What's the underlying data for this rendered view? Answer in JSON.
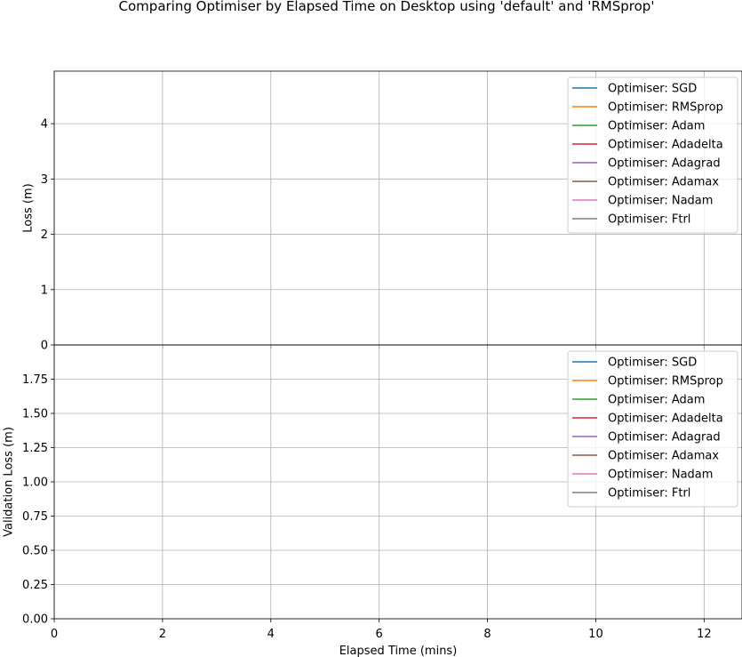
{
  "chart_data": [
    {
      "type": "line",
      "title": "Comparing Optimiser by Elapsed Time on Desktop using 'default' and 'RMSprop'",
      "ylabel": "Loss (m)",
      "xlabel": "",
      "xlim": [
        0,
        12.7
      ],
      "ylim": [
        0,
        4.95
      ],
      "xticks": [
        0,
        2,
        4,
        6,
        8,
        10,
        12
      ],
      "yticks": [
        0,
        1,
        2,
        3,
        4
      ],
      "grid": true,
      "legend_position": "top-right",
      "series": [
        {
          "name": "Optimiser: SGD",
          "color": "#1f77b4",
          "x": [],
          "y": []
        },
        {
          "name": "Optimiser: RMSprop",
          "color": "#ff7f0e",
          "x": [],
          "y": []
        },
        {
          "name": "Optimiser: Adam",
          "color": "#2ca02c",
          "x": [],
          "y": []
        },
        {
          "name": "Optimiser: Adadelta",
          "color": "#d62728",
          "x": [],
          "y": []
        },
        {
          "name": "Optimiser: Adagrad",
          "color": "#9467bd",
          "x": [],
          "y": []
        },
        {
          "name": "Optimiser: Adamax",
          "color": "#8c564b",
          "x": [],
          "y": []
        },
        {
          "name": "Optimiser: Nadam",
          "color": "#e377c2",
          "x": [],
          "y": []
        },
        {
          "name": "Optimiser: Ftrl",
          "color": "#7f7f7f",
          "x": [],
          "y": []
        }
      ]
    },
    {
      "type": "line",
      "title": "",
      "ylabel": "Validation Loss (m)",
      "xlabel": "Elapsed Time (mins)",
      "xlim": [
        0,
        12.7
      ],
      "ylim": [
        0,
        2.0
      ],
      "xticks": [
        0,
        2,
        4,
        6,
        8,
        10,
        12
      ],
      "yticks": [
        0.0,
        0.25,
        0.5,
        0.75,
        1.0,
        1.25,
        1.5,
        1.75
      ],
      "grid": true,
      "legend_position": "top-right",
      "series": [
        {
          "name": "Optimiser: SGD",
          "color": "#1f77b4",
          "x": [],
          "y": []
        },
        {
          "name": "Optimiser: RMSprop",
          "color": "#ff7f0e",
          "x": [],
          "y": []
        },
        {
          "name": "Optimiser: Adam",
          "color": "#2ca02c",
          "x": [],
          "y": []
        },
        {
          "name": "Optimiser: Adadelta",
          "color": "#d62728",
          "x": [],
          "y": []
        },
        {
          "name": "Optimiser: Adagrad",
          "color": "#9467bd",
          "x": [],
          "y": []
        },
        {
          "name": "Optimiser: Adamax",
          "color": "#8c564b",
          "x": [],
          "y": []
        },
        {
          "name": "Optimiser: Nadam",
          "color": "#e377c2",
          "x": [],
          "y": []
        },
        {
          "name": "Optimiser: Ftrl",
          "color": "#7f7f7f",
          "x": [],
          "y": []
        }
      ]
    }
  ]
}
